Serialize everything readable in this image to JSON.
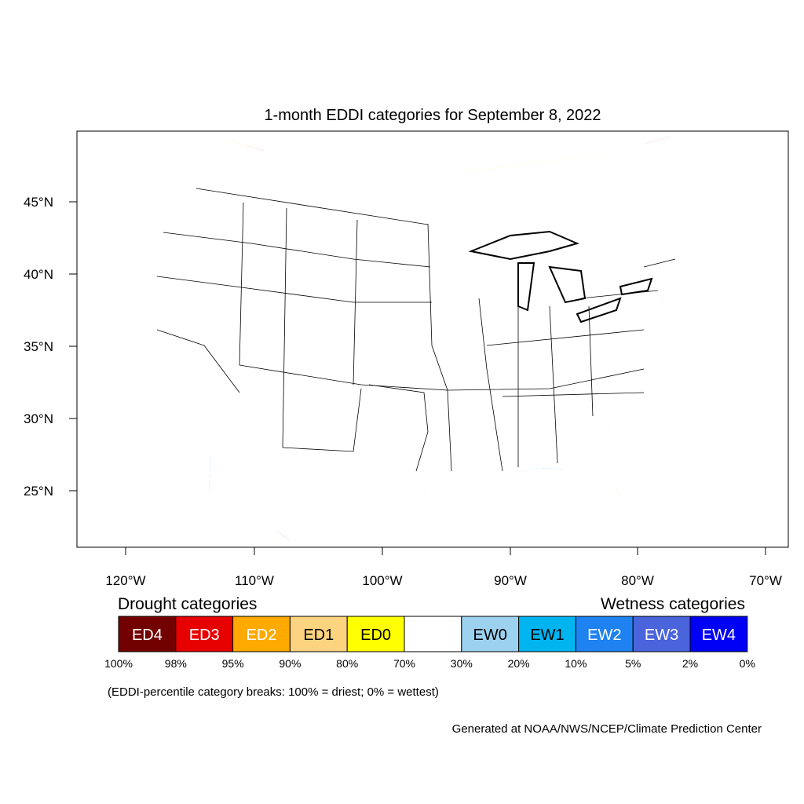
{
  "title": "1-month EDDI categories for September 8, 2022",
  "lat_ticks": [
    "45°N",
    "40°N",
    "35°N",
    "30°N",
    "25°N"
  ],
  "lon_ticks": [
    "120°W",
    "110°W",
    "100°W",
    "90°W",
    "80°W",
    "70°W"
  ],
  "legend": {
    "drought_title": "Drought categories",
    "wetness_title": "Wetness categories",
    "categories": [
      {
        "label": "ED4",
        "color": "#730000",
        "text_color": "#ffffff"
      },
      {
        "label": "ED3",
        "color": "#e60000",
        "text_color": "#ffffff"
      },
      {
        "label": "ED2",
        "color": "#ffaa00",
        "text_color": "#ffffff"
      },
      {
        "label": "ED1",
        "color": "#fcd37f",
        "text_color": "#000000"
      },
      {
        "label": "ED0",
        "color": "#ffff00",
        "text_color": "#000000"
      },
      {
        "label": "",
        "color": "#ffffff",
        "text_color": "#000000"
      },
      {
        "label": "EW0",
        "color": "#9dd1f0",
        "text_color": "#000000"
      },
      {
        "label": "EW1",
        "color": "#00b4f0",
        "text_color": "#000000"
      },
      {
        "label": "EW2",
        "color": "#1e82f0",
        "text_color": "#ffffff"
      },
      {
        "label": "EW3",
        "color": "#4a64dc",
        "text_color": "#ffffff"
      },
      {
        "label": "EW4",
        "color": "#0000f5",
        "text_color": "#ffffff"
      }
    ],
    "breaks": [
      "100%",
      "98%",
      "95%",
      "90%",
      "80%",
      "70%",
      "30%",
      "20%",
      "10%",
      "5%",
      "2%",
      "0%"
    ],
    "note": "(EDDI-percentile category breaks: 100% = driest; 0% = wettest)"
  },
  "credit": "Generated at NOAA/NWS/NCEP/Climate Prediction Center"
}
